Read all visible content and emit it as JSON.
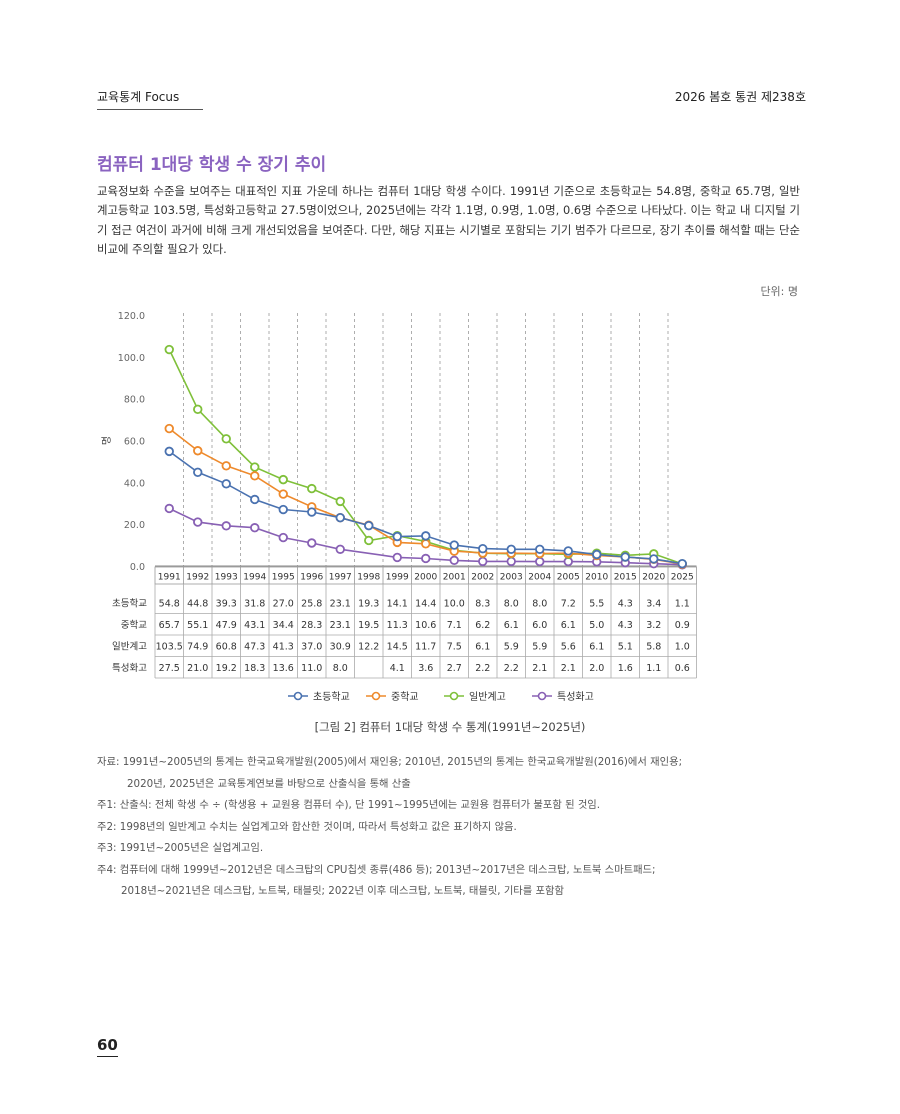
{
  "header": {
    "left": "교육통계 Focus",
    "right": "2026 봄호 통권 제238호"
  },
  "title": "컴퓨터 1대당 학생 수 장기 추이",
  "intro": "교육정보화 수준을 보여주는 대표적인 지표 가운데 하나는 컴퓨터 1대당 학생 수이다. 1991년 기준으로 초등학교는 54.8명, 중학교 65.7명, 일반계고등학교 103.5명, 특성화고등학교 27.5명이었으나, 2025년에는 각각 1.1명, 0.9명, 1.0명, 0.6명 수준으로 나타났다. 이는 학교 내 디지털 기기 접근 여건이 과거에 비해 크게 개선되었음을 보여준다. 다만, 해당 지표는 시기별로 포함되는 기기 범주가 다르므로, 장기 추이를 해석할 때는 단순 비교에 주의할 필요가 있다.",
  "unit_label": "단위: 명",
  "chart_data": {
    "type": "line",
    "ylabel": "명",
    "ylim": [
      0,
      120
    ],
    "yticks": [
      "0.0",
      "20.0",
      "40.0",
      "60.0",
      "80.0",
      "100.0",
      "120.0"
    ],
    "grid": "vertical dashed",
    "legend": "bottom",
    "categories": [
      "1991",
      "1992",
      "1993",
      "1994",
      "1995",
      "1996",
      "1997",
      "1998",
      "1999",
      "2000",
      "2001",
      "2002",
      "2003",
      "2004",
      "2005",
      "2010",
      "2015",
      "2020",
      "2025"
    ],
    "series": [
      {
        "name": "초등학교",
        "color": "#4a72b0",
        "values": [
          54.8,
          44.8,
          39.3,
          31.8,
          27.0,
          25.8,
          23.1,
          19.3,
          14.1,
          14.4,
          10.0,
          8.3,
          8.0,
          8.0,
          7.2,
          5.5,
          4.3,
          3.4,
          1.1
        ],
        "labels": [
          "54.8",
          "44.8",
          "39.3",
          "31.8",
          "27.0",
          "25.8",
          "23.1",
          "19.3",
          "14.1",
          "14.4",
          "10.0",
          "8.3",
          "8.0",
          "8.0",
          "7.2",
          "5.5",
          "4.3",
          "3.4",
          "1.1"
        ]
      },
      {
        "name": "중학교",
        "color": "#ee8a2c",
        "values": [
          65.7,
          55.1,
          47.9,
          43.1,
          34.4,
          28.3,
          23.1,
          19.5,
          11.3,
          10.6,
          7.1,
          6.2,
          6.1,
          6.0,
          6.1,
          5.0,
          4.3,
          3.2,
          0.9
        ],
        "labels": [
          "65.7",
          "55.1",
          "47.9",
          "43.1",
          "34.4",
          "28.3",
          "23.1",
          "19.5",
          "11.3",
          "10.6",
          "7.1",
          "6.2",
          "6.1",
          "6.0",
          "6.1",
          "5.0",
          "4.3",
          "3.2",
          "0.9"
        ]
      },
      {
        "name": "일반계고",
        "color": "#7fc03a",
        "values": [
          103.5,
          74.9,
          60.8,
          47.3,
          41.3,
          37.0,
          30.9,
          12.2,
          14.5,
          11.7,
          7.5,
          6.1,
          5.9,
          5.9,
          5.6,
          6.1,
          5.1,
          5.8,
          1.0
        ],
        "labels": [
          "103.5",
          "74.9",
          "60.8",
          "47.3",
          "41.3",
          "37.0",
          "30.9",
          "12.2",
          "14.5",
          "11.7",
          "7.5",
          "6.1",
          "5.9",
          "5.9",
          "5.6",
          "6.1",
          "5.1",
          "5.8",
          "1.0"
        ]
      },
      {
        "name": "특성화고",
        "color": "#8860b4",
        "values": [
          27.5,
          21.0,
          19.2,
          18.3,
          13.6,
          11.0,
          8.0,
          null,
          4.1,
          3.6,
          2.7,
          2.2,
          2.2,
          2.1,
          2.1,
          2.0,
          1.6,
          1.1,
          0.6
        ],
        "labels": [
          "27.5",
          "21.0",
          "19.2",
          "18.3",
          "13.6",
          "11.0",
          "8.0",
          "",
          "4.1",
          "3.6",
          "2.7",
          "2.2",
          "2.2",
          "2.1",
          "2.1",
          "2.0",
          "1.6",
          "1.1",
          "0.6"
        ]
      }
    ]
  },
  "caption": "[그림 2] 컴퓨터 1대당 학생 수 통계(1991년~2025년)",
  "notes": {
    "source_1": "자료: 1991년~2005년의 통계는 한국교육개발원(2005)에서 재인용; 2010년, 2015년의 통계는 한국교육개발원(2016)에서 재인용;",
    "source_2": "2020년, 2025년은 교육통계연보를 바탕으로 산출식을 통해 산출",
    "note1": "주1: 산출식: 전체 학생 수 ÷ (학생용 + 교원용 컴퓨터 수), 단 1991~1995년에는 교원용 컴퓨터가 불포함 된 것임.",
    "note2": "주2: 1998년의 일반계고 수치는 실업계고와 합산한 것이며, 따라서 특성화고 값은 표기하지 않음.",
    "note3": "주3: 1991년~2005년은 실업계고임.",
    "note4_1": "주4: 컴퓨터에 대해 1999년~2012년은 데스크탑의 CPU칩셋 종류(486 등); 2013년~2017년은 데스크탑, 노트북 스마트패드;",
    "note4_2": "2018년~2021년은 데스크탑, 노트북, 태블릿; 2022년 이후 데스크탑, 노트북, 태블릿, 기타를 포함함"
  },
  "page_number": "60"
}
